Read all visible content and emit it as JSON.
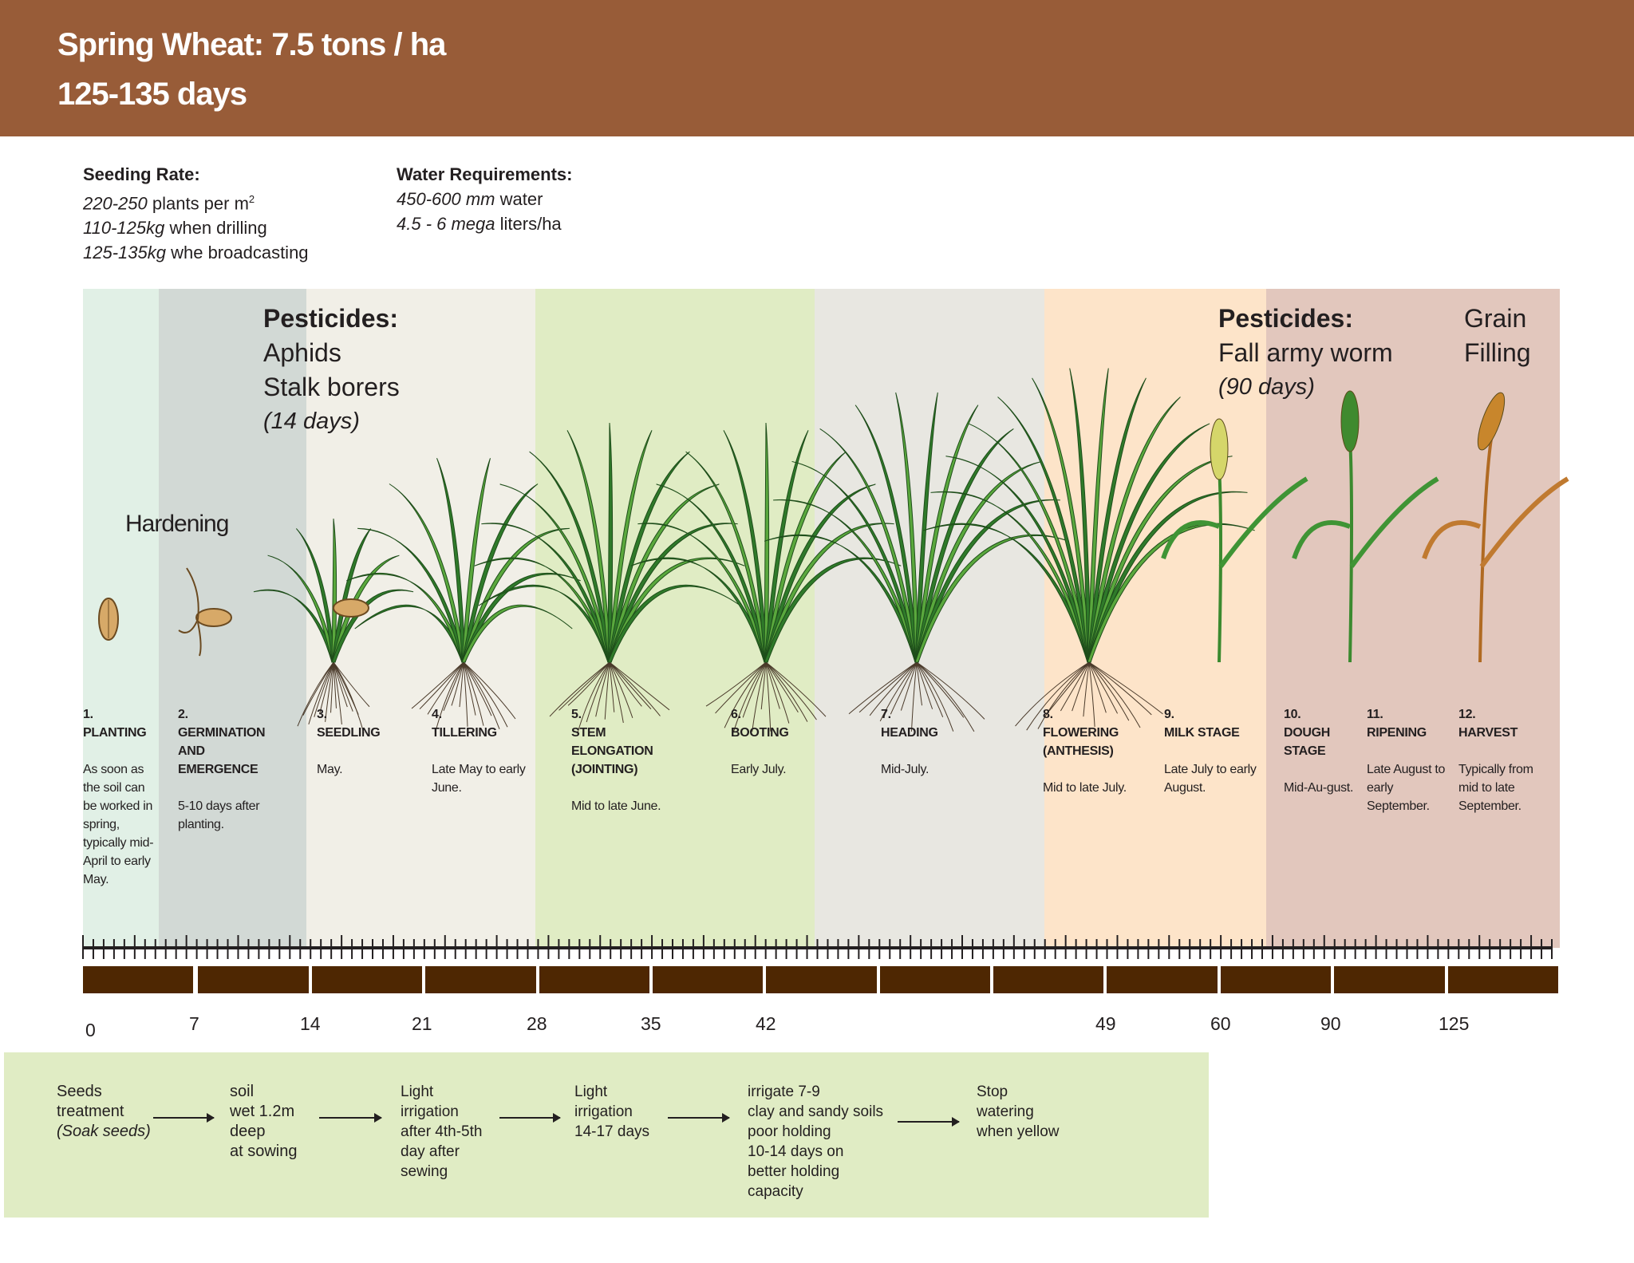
{
  "header": {
    "title_line1": "Spring Wheat: 7.5 tons / ha",
    "title_line2": "125-135 days",
    "color": "#985c38"
  },
  "seeding": {
    "label": "Seeding Rate:",
    "lines": [
      {
        "em": "220-250",
        "text": " plants per m",
        "sup": "2"
      },
      {
        "em": "110-125kg",
        "text": " when drilling"
      },
      {
        "em": "125-135kg",
        "text": " whe broadcasting"
      }
    ]
  },
  "water_req": {
    "label": "Water Requirements:",
    "lines": [
      {
        "em": "450-600 mm",
        "text": " water"
      },
      {
        "em": "4.5 - 6 mega",
        "text": " liters/ha"
      }
    ]
  },
  "pesticides_early": {
    "label": "Pesticides:",
    "items": [
      "Aphids",
      "Stalk borers"
    ],
    "duration": "(14 days)"
  },
  "pesticides_late": {
    "label": "Pesticides:",
    "items": [
      "Fall army worm"
    ],
    "duration": "(90 days)"
  },
  "grain_filling": {
    "line1": "Grain",
    "line2": "Filling"
  },
  "hardening": "Hardening",
  "band_colors": [
    "#e1f0e6",
    "#d2d9d5",
    "#f1efe7",
    "#e0ecc4",
    "#e8e7e1",
    "#fde4c9",
    "#e2c7bd"
  ],
  "stages": [
    {
      "num": "1.",
      "name": [
        "PLANTING"
      ],
      "date": "As soon as the soil can be worked in spring, typically mid-April to early May.",
      "gap": 1
    },
    {
      "num": "2.",
      "name": [
        "GERMINATION",
        "AND",
        "EMERGENCE"
      ],
      "date": "5-10 days after planting.",
      "gap": 1
    },
    {
      "num": "3.",
      "name": [
        "SEEDLING"
      ],
      "date": "May.",
      "gap": 1
    },
    {
      "num": "4.",
      "name": [
        "TILLERING"
      ],
      "date": "Late May to early June.",
      "gap": 1
    },
    {
      "num": "5.",
      "name": [
        "STEM",
        "ELONGATION",
        "(JOINTING)"
      ],
      "date": "Mid to late June.",
      "gap": 1
    },
    {
      "num": "6.",
      "name": [
        "BOOTING"
      ],
      "date": "Early July.",
      "gap": 1
    },
    {
      "num": "7.",
      "name": [
        "HEADING"
      ],
      "date": "Mid-July.",
      "gap": 1
    },
    {
      "num": "8.",
      "name": [
        "FLOWERING",
        "(ANTHESIS)"
      ],
      "date": "Mid to late July.",
      "gap": 1
    },
    {
      "num": "9.",
      "name": [
        "MILK STAGE"
      ],
      "date": "Late July to early August.",
      "gap": 1
    },
    {
      "num": "10.",
      "name": [
        "DOUGH",
        "STAGE"
      ],
      "date": "Mid-Au-gust.",
      "gap": 1
    },
    {
      "num": "11.",
      "name": [
        "RIPENING"
      ],
      "date": "Late August to early September.",
      "gap": 1
    },
    {
      "num": "12.",
      "name": [
        "HARVEST"
      ],
      "date": "Typically from mid to late September.",
      "gap": 1
    }
  ],
  "plants": [
    "seed-icon",
    "germinating-seed-icon",
    "seedling-icon",
    "tillering-plant-icon",
    "stem-elongation-plant-icon",
    "booting-plant-icon",
    "heading-plant-icon",
    "flowering-plant-icon",
    "milk-stage-ear-icon",
    "dough-stage-ear-icon",
    "ripe-ear-icon"
  ],
  "axis_labels": [
    "0",
    "7",
    "14",
    "21",
    "28",
    "35",
    "42",
    "49",
    "60",
    "90",
    "125"
  ],
  "timeline_bar_color": "#4e2702",
  "watering": [
    {
      "lines": [
        "Seeds",
        "treatment"
      ],
      "em": "(Soak seeds)"
    },
    {
      "lines": [
        "soil",
        "wet 1.2m",
        "deep",
        "at sowing"
      ]
    },
    {
      "lines": [
        "Light",
        "irrigation",
        "after 4th-5th",
        "day after",
        "sewing"
      ]
    },
    {
      "lines": [
        "Light",
        "irrigation",
        "14-17 days"
      ]
    },
    {
      "lines": [
        "irrigate 7-9",
        "clay and sandy soils",
        "poor holding",
        "10-14 days on",
        "better holding",
        "capacity"
      ]
    },
    {
      "lines": [
        "Stop",
        "watering",
        "when yellow"
      ]
    }
  ]
}
